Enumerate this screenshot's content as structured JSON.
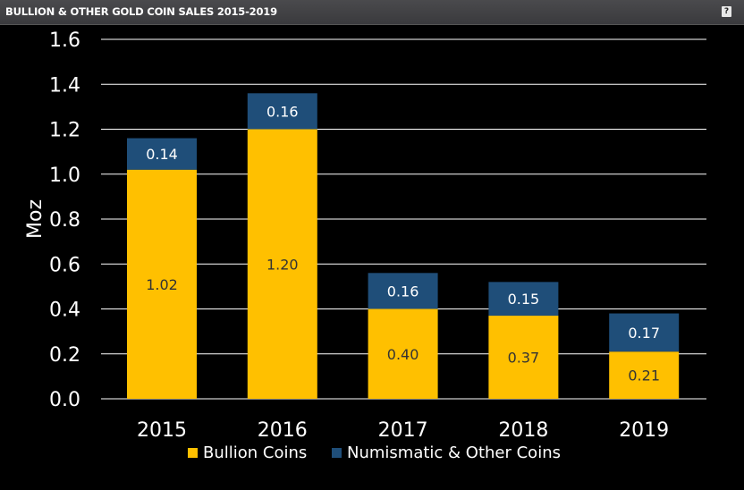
{
  "header": {
    "title": "BULLION & OTHER GOLD COIN SALES 2015-2019",
    "help_label": "?"
  },
  "colors": {
    "bullion": "#ffc000",
    "numismatic": "#1f4e79",
    "grid": "#ffffff",
    "bullion_label": "#333333",
    "numismatic_label": "#ffffff"
  },
  "chart_data": {
    "type": "bar",
    "stacked": true,
    "title": "BULLION & OTHER GOLD COIN SALES 2015-2019",
    "xlabel": "",
    "ylabel": "Moz",
    "ylim": [
      0,
      1.6
    ],
    "yticks": [
      "0.0",
      "0.2",
      "0.4",
      "0.6",
      "0.8",
      "1.0",
      "1.2",
      "1.4",
      "1.6"
    ],
    "categories": [
      "2015",
      "2016",
      "2017",
      "2018",
      "2019"
    ],
    "series": [
      {
        "name": "Bullion Coins",
        "values": [
          1.02,
          1.2,
          0.4,
          0.37,
          0.21
        ],
        "labels": [
          "1.02",
          "1.20",
          "0.40",
          "0.37",
          "0.21"
        ]
      },
      {
        "name": "Numismatic & Other Coins",
        "values": [
          0.14,
          0.16,
          0.16,
          0.15,
          0.17
        ],
        "labels": [
          "0.14",
          "0.16",
          "0.16",
          "0.15",
          "0.17"
        ]
      }
    ],
    "grid": true,
    "legend": "bottom"
  }
}
